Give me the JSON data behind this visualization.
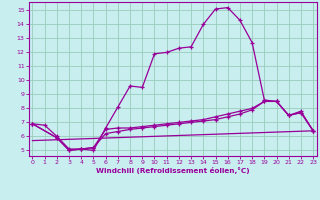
{
  "xlabel": "Windchill (Refroidissement éolien,°C)",
  "x_ticks": [
    0,
    1,
    2,
    3,
    4,
    5,
    6,
    7,
    8,
    9,
    10,
    11,
    12,
    13,
    14,
    15,
    16,
    17,
    18,
    19,
    20,
    21,
    22,
    23
  ],
  "y_ticks": [
    5,
    6,
    7,
    8,
    9,
    10,
    11,
    12,
    13,
    14,
    15
  ],
  "ylim": [
    4.6,
    15.6
  ],
  "xlim": [
    -0.3,
    23.3
  ],
  "bg_color": "#c8eef0",
  "line_color": "#990099",
  "grid_color": "#99ccbb",
  "line1_x": [
    0,
    1,
    2,
    3,
    4,
    5,
    6,
    7,
    8,
    9,
    10,
    11,
    12,
    13,
    14,
    15,
    16,
    17,
    18,
    19,
    20,
    21,
    22,
    23
  ],
  "line1_y": [
    6.9,
    6.8,
    6.0,
    5.1,
    5.1,
    5.0,
    6.6,
    8.1,
    9.6,
    9.5,
    11.9,
    12.0,
    12.3,
    12.4,
    14.0,
    15.1,
    15.2,
    14.3,
    12.7,
    8.6,
    8.5,
    7.5,
    7.8,
    6.4
  ],
  "line2_x": [
    0,
    2,
    3,
    4,
    5,
    6,
    7,
    8,
    9,
    10,
    11,
    12,
    13,
    14,
    15,
    16,
    17,
    18,
    19,
    20,
    21,
    22,
    23
  ],
  "line2_y": [
    6.9,
    5.9,
    5.0,
    5.1,
    5.2,
    6.5,
    6.6,
    6.6,
    6.7,
    6.8,
    6.9,
    7.0,
    7.1,
    7.2,
    7.4,
    7.6,
    7.8,
    8.0,
    8.5,
    8.5,
    7.5,
    7.7,
    6.4
  ],
  "line3_x": [
    0,
    2,
    3,
    4,
    5,
    6,
    7,
    8,
    9,
    10,
    11,
    12,
    13,
    14,
    15,
    16,
    17,
    18,
    19,
    20,
    21,
    22,
    23
  ],
  "line3_y": [
    6.9,
    5.9,
    5.0,
    5.1,
    5.2,
    6.2,
    6.35,
    6.5,
    6.6,
    6.7,
    6.8,
    6.9,
    7.0,
    7.1,
    7.2,
    7.4,
    7.6,
    7.9,
    8.5,
    8.5,
    7.5,
    7.7,
    6.4
  ],
  "line4_x": [
    0,
    23
  ],
  "line4_y": [
    5.7,
    6.4
  ]
}
